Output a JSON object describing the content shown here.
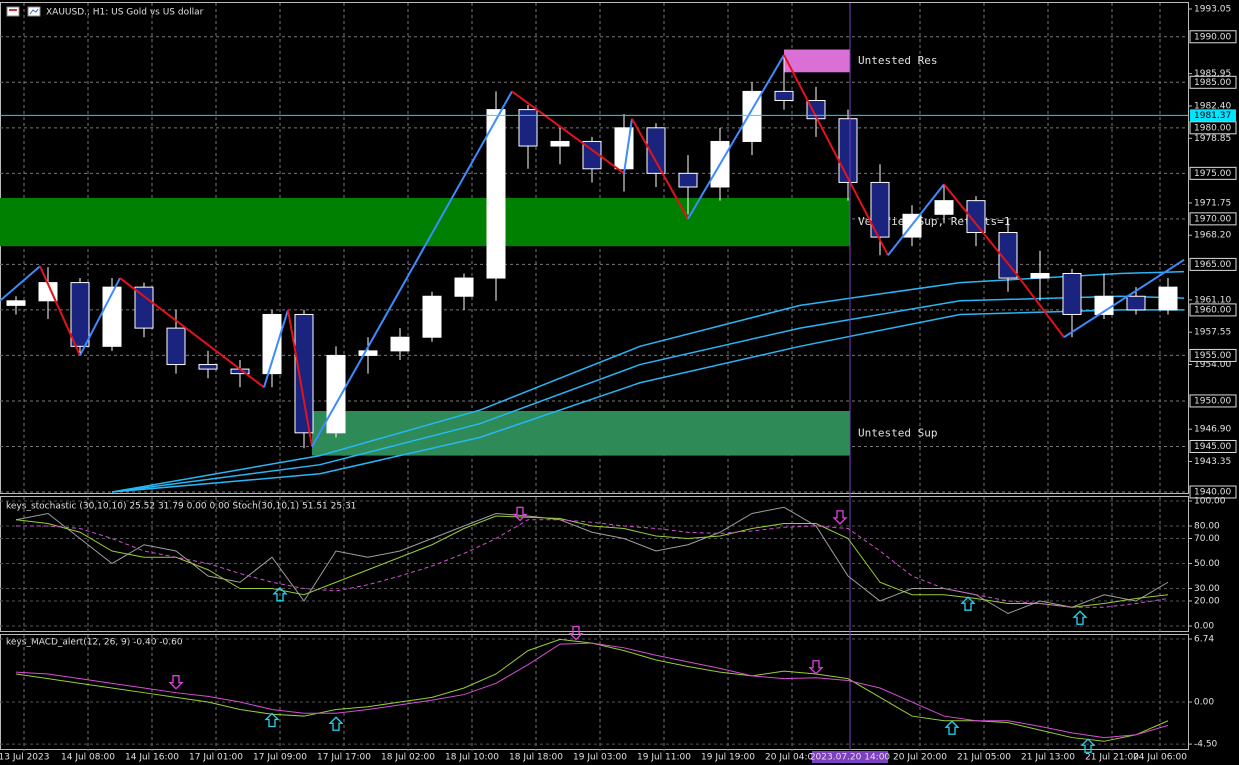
{
  "chart_data": [
    {
      "type": "candlestick",
      "title": "XAUUSD., H1:  US Gold vs US dollar",
      "xlim": [
        0,
        148.5
      ],
      "ylim": [
        1940,
        1993.05
      ],
      "xticks": [
        {
          "value": 3,
          "label": "13 Jul 2023"
        },
        {
          "value": 11,
          "label": "14 Jul 08:00"
        },
        {
          "value": 19,
          "label": "14 Jul 16:00"
        },
        {
          "value": 27,
          "label": "17 Jul 01:00"
        },
        {
          "value": 35,
          "label": "17 Jul 09:00"
        },
        {
          "value": 43,
          "label": "17 Jul 17:00"
        },
        {
          "value": 51,
          "label": "18 Jul 02:00"
        },
        {
          "value": 59,
          "label": "18 Jul 10:00"
        },
        {
          "value": 67,
          "label": "18 Jul 18:00"
        },
        {
          "value": 75,
          "label": "19 Jul 03:00"
        },
        {
          "value": 83,
          "label": "19 Jul 11:00"
        },
        {
          "value": 91,
          "label": "19 Jul 19:00"
        },
        {
          "value": 99,
          "label": "20 Jul 04:00"
        },
        {
          "value": 115,
          "label": "20 Jul 20:00"
        },
        {
          "value": 123,
          "label": "21 Jul 05:00"
        },
        {
          "value": 131,
          "label": "21 Jul 13:00"
        },
        {
          "value": 139,
          "label": "21 Jul 21:00"
        },
        {
          "value": 145,
          "label": "24 Jul 06:00"
        }
      ],
      "yticks": [
        {
          "value": 1993.05,
          "label": "1993.05"
        },
        {
          "value": 1985.95,
          "label": "1985.95"
        },
        {
          "value": 1982.4,
          "label": "1982.40"
        },
        {
          "value": 1978.85,
          "label": "1978.85"
        },
        {
          "value": 1971.75,
          "label": "1971.75"
        },
        {
          "value": 1968.2,
          "label": "1968.20"
        },
        {
          "value": 1961.1,
          "label": "1961.10"
        },
        {
          "value": 1957.55,
          "label": "1957.55"
        },
        {
          "value": 1954,
          "label": "1954.00"
        },
        {
          "value": 1946.9,
          "label": "1946.90"
        },
        {
          "value": 1943.35,
          "label": "1943.35"
        }
      ],
      "level_ticks": [
        {
          "value": 1990,
          "label": "1990.00"
        },
        {
          "value": 1985,
          "label": "1985.00"
        },
        {
          "value": 1980,
          "label": "1980.00"
        },
        {
          "value": 1975,
          "label": "1975.00"
        },
        {
          "value": 1970,
          "label": "1970.00"
        },
        {
          "value": 1965,
          "label": "1965.00"
        },
        {
          "value": 1960,
          "label": "1960.00"
        },
        {
          "value": 1955,
          "label": "1955.00"
        },
        {
          "value": 1950,
          "label": "1950.00"
        },
        {
          "value": 1945,
          "label": "1945.00"
        },
        {
          "value": 1940,
          "label": "1940.00"
        }
      ],
      "price_line": {
        "value": 1981.37,
        "label": "1981.37",
        "color": "#00e5ff"
      },
      "cursor": {
        "x": 106.25,
        "label": "2023.07.20 14:00",
        "color": "#7b3fbf"
      },
      "grid": true,
      "up_color": "#ffffff",
      "down_color": "#1a237e",
      "candles": {
        "x": [
          2,
          6,
          10,
          14,
          18,
          22,
          26,
          30,
          34,
          38,
          42,
          46,
          50,
          54,
          58,
          62,
          66,
          70,
          74,
          78,
          82,
          86,
          90,
          94,
          98,
          102,
          106,
          110,
          114,
          118,
          122,
          126,
          130,
          134,
          138,
          142,
          146
        ],
        "open": [
          1960.5,
          1961,
          1963,
          1956,
          1962.5,
          1958,
          1954,
          1953.5,
          1953,
          1959.5,
          1946.5,
          1955,
          1955.5,
          1957,
          1961.5,
          1963.5,
          1982,
          1978,
          1978.5,
          1975.5,
          1980,
          1975,
          1973.5,
          1978.5,
          1984,
          1983,
          1981,
          1974,
          1968,
          1970.5,
          1972,
          1968.5,
          1963.5,
          1964,
          1959.5,
          1961.5,
          1960
        ],
        "high": [
          1961.5,
          1964.7,
          1963.5,
          1963.5,
          1963,
          1960,
          1955.5,
          1954.5,
          1960,
          1960,
          1956,
          1957,
          1958,
          1962,
          1964,
          1984,
          1982.5,
          1980,
          1979,
          1981.5,
          1980.5,
          1977,
          1980,
          1985,
          1988,
          1984.5,
          1982,
          1976,
          1971.5,
          1973.8,
          1972.5,
          1970,
          1966.5,
          1964.5,
          1964,
          1962.5,
          1963.5
        ],
        "low": [
          1959.5,
          1959,
          1955,
          1955.5,
          1957,
          1953,
          1952.5,
          1951.5,
          1951.5,
          1944.8,
          1946,
          1953,
          1954.5,
          1956.5,
          1960,
          1961,
          1975.5,
          1976,
          1974,
          1973,
          1973.5,
          1970.5,
          1972,
          1977,
          1982,
          1979,
          1972,
          1966,
          1967,
          1969.5,
          1967,
          1962,
          1961,
          1957,
          1959,
          1959.5,
          1959.5
        ],
        "close": [
          1961,
          1963,
          1956,
          1962.5,
          1958,
          1954,
          1953.5,
          1953,
          1959.5,
          1946.5,
          1955,
          1955.5,
          1957,
          1961.5,
          1963.5,
          1982,
          1978,
          1978.5,
          1975.5,
          1980,
          1975,
          1973.5,
          1978.5,
          1984,
          1983,
          1981,
          1974,
          1968,
          1970.5,
          1972,
          1968.5,
          1963.5,
          1964,
          1959.5,
          1961.5,
          1960,
          1962.5
        ]
      },
      "zigzag": {
        "up_color": "#3d8bff",
        "down_color": "#e3121b",
        "x": [
          0,
          5,
          10,
          15,
          33,
          36,
          39,
          64,
          78,
          79,
          86,
          98,
          111,
          118,
          127,
          133,
          148
        ],
        "values": [
          1961,
          1964.8,
          1955,
          1963.5,
          1951.5,
          1960,
          1945,
          1984,
          1975,
          1981,
          1970,
          1988,
          1966,
          1973.8,
          1964,
          1957,
          1965.5
        ]
      },
      "series": [
        {
          "color": "#29b6f6",
          "x": [
            14,
            40,
            60,
            80,
            100,
            120,
            140,
            148
          ],
          "values": [
            1940,
            1944,
            1949,
            1956,
            1960.5,
            1963,
            1964,
            1964.2
          ]
        },
        {
          "color": "#29b6f6",
          "x": [
            14,
            40,
            60,
            80,
            100,
            120,
            140,
            148
          ],
          "values": [
            1940,
            1943,
            1947.5,
            1954,
            1958,
            1961,
            1961.5,
            1961.3
          ]
        },
        {
          "color": "#29b6f6",
          "x": [
            14,
            40,
            60,
            80,
            100,
            120,
            140,
            148
          ],
          "values": [
            1940,
            1942,
            1946,
            1952,
            1956,
            1959.5,
            1960,
            1960
          ]
        }
      ],
      "zones": [
        {
          "label": "Untested Res",
          "x0": 98,
          "x1": 106.25,
          "low": 1986.1,
          "high": 1988.6,
          "color": "#da70d6"
        },
        {
          "label": "Verified Sup, Retests=1",
          "x0": 0,
          "x1": 106.25,
          "low": 1967,
          "high": 1972.3,
          "color": "#008000"
        },
        {
          "label": "Untested Sup",
          "x0": 39,
          "x1": 106.25,
          "low": 1944,
          "high": 1948.9,
          "color": "#2e8b57"
        }
      ]
    },
    {
      "type": "line",
      "title": "keys_stochastic (30,10,10) 25.52 31.79 0.00 0.00 Stoch(30,10,1) 51.51 25.31",
      "xlim": [
        0,
        148.5
      ],
      "ylim": [
        -4.8,
        103.2
      ],
      "yticks": [
        {
          "value": 100,
          "label": "100.00"
        },
        {
          "value": 80,
          "label": "80.00"
        },
        {
          "value": 70,
          "label": "70.00"
        },
        {
          "value": 50,
          "label": "50.00"
        },
        {
          "value": 30,
          "label": "30.00"
        },
        {
          "value": 20,
          "label": "20.00"
        },
        {
          "value": 0,
          "label": "0.00"
        }
      ],
      "x": [
        2,
        6,
        10,
        14,
        18,
        22,
        26,
        30,
        34,
        38,
        42,
        46,
        50,
        54,
        58,
        62,
        66,
        70,
        74,
        78,
        82,
        86,
        90,
        94,
        98,
        102,
        106,
        110,
        114,
        118,
        122,
        126,
        130,
        134,
        138,
        142,
        146
      ],
      "series": [
        {
          "color": "#9e9e9e",
          "values": [
            85,
            90,
            70,
            50,
            65,
            60,
            40,
            35,
            55,
            20,
            60,
            55,
            60,
            70,
            80,
            90,
            88,
            85,
            75,
            70,
            60,
            65,
            75,
            90,
            95,
            80,
            40,
            20,
            30,
            30,
            25,
            10,
            20,
            15,
            25,
            20,
            35
          ]
        },
        {
          "color": "#9acd32",
          "values": [
            85,
            82,
            75,
            60,
            55,
            55,
            45,
            30,
            30,
            25,
            35,
            45,
            55,
            65,
            78,
            88,
            87,
            86,
            80,
            78,
            72,
            70,
            72,
            78,
            82,
            82,
            70,
            35,
            25,
            25,
            22,
            18,
            18,
            15,
            18,
            22,
            25
          ]
        },
        {
          "color": "#d44fd4",
          "dashed": true,
          "values": [
            80,
            80,
            78,
            70,
            60,
            55,
            50,
            42,
            35,
            30,
            28,
            33,
            40,
            48,
            58,
            70,
            85,
            85,
            83,
            80,
            78,
            75,
            74,
            76,
            79,
            80,
            78,
            60,
            40,
            30,
            25,
            20,
            18,
            15,
            15,
            18,
            22
          ]
        }
      ],
      "arrows": [
        {
          "x": 35,
          "dir": "up"
        },
        {
          "x": 65,
          "dir": "down"
        },
        {
          "x": 105,
          "dir": "down"
        },
        {
          "x": 121,
          "dir": "up"
        },
        {
          "x": 135,
          "dir": "up"
        }
      ]
    },
    {
      "type": "line",
      "title": "keys_MACD_alert(12, 26, 9) -0.40 -0.60",
      "xlim": [
        0,
        148.5
      ],
      "ylim": [
        -5.13,
        7.17
      ],
      "yticks": [
        6.74,
        {
          "value": 0,
          "label": "0.00"
        },
        {
          "value": -4.5,
          "label": "-4.50"
        }
      ],
      "x": [
        2,
        6,
        10,
        14,
        18,
        22,
        26,
        30,
        34,
        38,
        42,
        46,
        50,
        54,
        58,
        62,
        66,
        70,
        74,
        78,
        82,
        86,
        90,
        94,
        98,
        102,
        106,
        110,
        114,
        118,
        122,
        126,
        130,
        134,
        138,
        142,
        146
      ],
      "series": [
        {
          "color": "#9acd32",
          "values": [
            3,
            2.5,
            2,
            1.5,
            1,
            0.5,
            0,
            -0.8,
            -1.3,
            -1.5,
            -0.8,
            -0.5,
            0,
            0.5,
            1.5,
            3,
            5.5,
            6.7,
            6.3,
            5.5,
            4.5,
            3.8,
            3.2,
            2.8,
            3.3,
            3,
            2.5,
            0.5,
            -1.5,
            -2,
            -2,
            -2.2,
            -3,
            -3.8,
            -4.2,
            -3.5,
            -2
          ]
        },
        {
          "color": "#d44fd4",
          "values": [
            3.2,
            3,
            2.5,
            2,
            1.5,
            1,
            0.6,
            0,
            -0.8,
            -1.2,
            -1.2,
            -0.8,
            -0.3,
            0.2,
            0.8,
            2,
            4,
            6.2,
            6.3,
            5.8,
            5,
            4.3,
            3.6,
            2.8,
            2.5,
            2.6,
            2.3,
            1.5,
            0,
            -1.5,
            -2,
            -2,
            -2.6,
            -3.3,
            -3.8,
            -3.5,
            -2.5
          ]
        }
      ],
      "arrows": [
        {
          "x": 22,
          "dir": "down"
        },
        {
          "x": 34,
          "dir": "up"
        },
        {
          "x": 42,
          "dir": "up"
        },
        {
          "x": 72,
          "dir": "down"
        },
        {
          "x": 102,
          "dir": "down"
        },
        {
          "x": 119,
          "dir": "up"
        },
        {
          "x": 136,
          "dir": "up"
        }
      ]
    }
  ]
}
